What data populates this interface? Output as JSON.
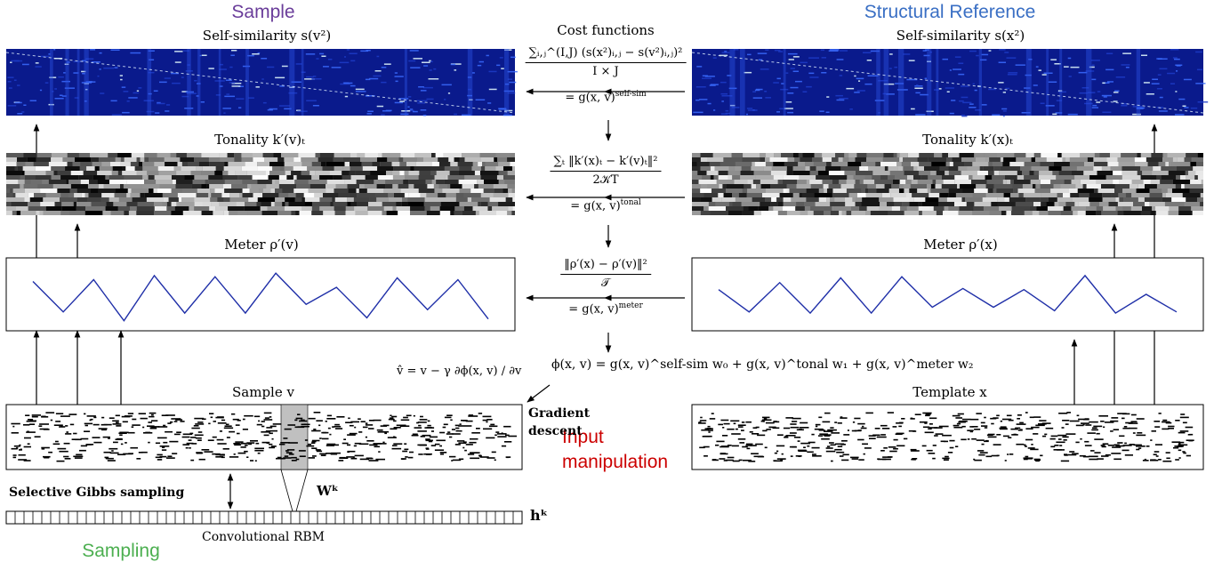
{
  "headings": {
    "sample": "Sample",
    "structural_reference": "Structural Reference",
    "sampling": "Sampling",
    "input_manipulation": "Input\nmanipulation",
    "cost_functions": "Cost functions"
  },
  "colors": {
    "sample_heading": "#6a3d9a",
    "reference_heading": "#3a6fc4",
    "sampling_heading": "#4caf50",
    "input_manipulation": "#cc0000",
    "selfsim_bg": "#0a1a8c",
    "meter_line": "#1f2fa8"
  },
  "left": {
    "selfsim_label": "Self-similarity s(v²)",
    "tonality_label": "Tonality k′(v)ₜ",
    "meter_label": "Meter ρ′(v)",
    "sample_label": "Sample v",
    "meter_values": [
      0.72,
      0.2,
      0.75,
      0.05,
      0.82,
      0.18,
      0.8,
      0.18,
      0.86,
      0.33,
      0.62,
      0.1,
      0.78,
      0.24,
      0.75,
      0.08
    ]
  },
  "right": {
    "selfsim_label": "Self-similarity s(x²)",
    "tonality_label": "Tonality k′(x)ₜ",
    "meter_label": "Meter ρ′(x)",
    "template_label": "Template x",
    "meter_values": [
      0.58,
      0.2,
      0.7,
      0.18,
      0.78,
      0.18,
      0.8,
      0.28,
      0.6,
      0.28,
      0.58,
      0.22,
      0.82,
      0.18,
      0.5,
      0.2
    ]
  },
  "costs": {
    "selfsim_num": "∑ᵢ,ⱼ^(I,J) (s(x²)ᵢ,ⱼ − s(v²)ᵢ,ⱼ)²",
    "selfsim_den": "I × J",
    "selfsim_eq": "= g(x, v)",
    "selfsim_sup": "self-sim",
    "tonal_num": "∑ₜ ‖k′(x)ₜ − k′(v)ₜ‖²",
    "tonal_den": "2𝒦T",
    "tonal_eq": "= g(x, v)",
    "tonal_sup": "tonal",
    "meter_num": "‖ρ′(x) − ρ′(v)‖²",
    "meter_den": "𝒯",
    "meter_eq": "= g(x, v)",
    "meter_sup": "meter"
  },
  "objective": "ϕ(x, v) = g(x, v)^self-sim w₀ + g(x, v)^tonal w₁ + g(x, v)^meter w₂",
  "update_rule": "v̂ = v − γ ∂ϕ(x, v) / ∂v",
  "gradient_descent": "Gradient\ndescent",
  "selective_gibbs": "Selective Gibbs sampling",
  "weights_label": "Wᵏ",
  "hidden_label": "hᵏ",
  "crbm_label": "Convolutional RBM"
}
